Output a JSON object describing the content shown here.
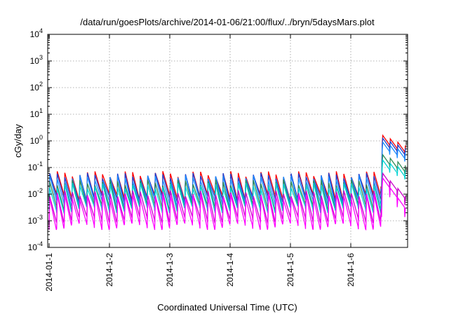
{
  "chart_data": {
    "type": "line",
    "title": "/data/run/goesPlots/archive/2014-01-06/21:00/flux/../bryn/5daysMars.plot",
    "xlabel": "Coordinated Universal Time (UTC)",
    "ylabel": "cGy/day",
    "y_scale": "log",
    "ylim": [
      0.0001,
      10000
    ],
    "xlim_days": [
      "2014-01-01",
      "2014-01-06 21:00"
    ],
    "grid": true,
    "x_ticks": [
      {
        "label": "2014-01-1",
        "day": 0
      },
      {
        "label": "2014-1-2",
        "day": 1
      },
      {
        "label": "2014-1-3",
        "day": 2
      },
      {
        "label": "2014-1-4",
        "day": 3
      },
      {
        "label": "2014-1-5",
        "day": 4
      },
      {
        "label": "2014-1-6",
        "day": 5
      }
    ],
    "y_ticks": [
      {
        "base": "10",
        "exp": "-4",
        "value": 0.0001
      },
      {
        "base": "10",
        "exp": "-3",
        "value": 0.001
      },
      {
        "base": "10",
        "exp": "-2",
        "value": 0.01
      },
      {
        "base": "10",
        "exp": "-1",
        "value": 0.1
      },
      {
        "base": "10",
        "exp": "0",
        "value": 1
      },
      {
        "base": "10",
        "exp": "1",
        "value": 10
      },
      {
        "base": "10",
        "exp": "2",
        "value": 100
      },
      {
        "base": "10",
        "exp": "3",
        "value": 1000
      },
      {
        "base": "10",
        "exp": "4",
        "value": 10000
      }
    ],
    "sawtooth_cycles_per_day": 8,
    "event_onset_day": 5.52,
    "series": [
      {
        "color": "#ff0000",
        "quiet_peak": 0.058,
        "quiet_trough": 0.0085,
        "event_peak": 1.6,
        "event_end": 0.5
      },
      {
        "color": "#1f3fcf",
        "quiet_peak": 0.05,
        "quiet_trough": 0.007,
        "event_peak": 1.25,
        "event_end": 0.4
      },
      {
        "color": "#1a8cff",
        "quiet_peak": 0.04,
        "quiet_trough": 0.005,
        "event_peak": 0.9,
        "event_end": 0.28
      },
      {
        "color": "#2e8b57",
        "quiet_peak": 0.028,
        "quiet_trough": 0.0035,
        "event_peak": 0.3,
        "event_end": 0.09
      },
      {
        "color": "#00d4d4",
        "quiet_peak": 0.021,
        "quiet_trough": 0.0028,
        "event_peak": 0.19,
        "event_end": 0.06
      },
      {
        "color": "#cc00cc",
        "quiet_peak": 0.011,
        "quiet_trough": 0.0012,
        "event_peak": 0.06,
        "event_end": 0.0045
      },
      {
        "color": "#ff00ff",
        "quiet_peak": 0.008,
        "quiet_trough": 0.00065,
        "event_peak": 0.04,
        "event_end": 0.0013
      }
    ]
  }
}
